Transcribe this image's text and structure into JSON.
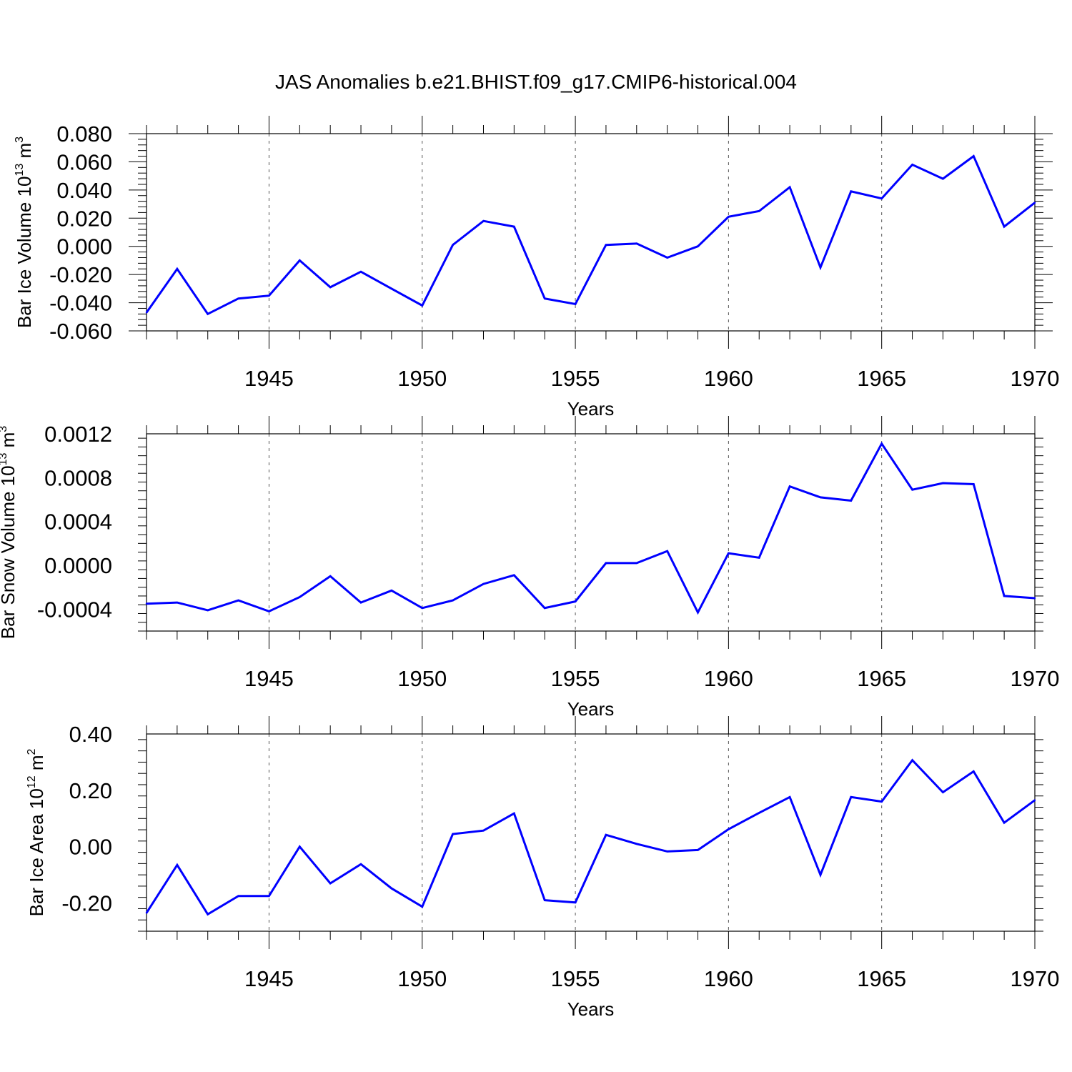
{
  "title": "JAS Anomalies b.e21.BHIST.f09_g17.CMIP6-historical.004",
  "colors": {
    "line": "#0000ff",
    "axis": "#000000",
    "grid": "#555555"
  },
  "chart_data": [
    {
      "type": "line",
      "title": "",
      "xlabel": "Years",
      "ylabel": {
        "base": "Bar Ice Volume 10",
        "exp": "13",
        "unit": " m",
        "unit_exp": "3"
      },
      "xlim": [
        1941,
        1970
      ],
      "ylim": [
        -0.06,
        0.08
      ],
      "x_ticks": [
        1945,
        1950,
        1955,
        1960,
        1965,
        1970
      ],
      "y_ticks": [
        -0.06,
        -0.04,
        -0.02,
        0.0,
        0.02,
        0.04,
        0.06,
        0.08
      ],
      "y_tick_labels": [
        "-0.060",
        "-0.040",
        "-0.020",
        "0.000",
        "0.020",
        "0.040",
        "0.060",
        "0.080"
      ],
      "grid": "dashed vertical at 1945, 1950, 1955, 1960, 1965",
      "x": [
        1941,
        1942,
        1943,
        1944,
        1945,
        1946,
        1947,
        1948,
        1949,
        1950,
        1951,
        1952,
        1953,
        1954,
        1955,
        1956,
        1957,
        1958,
        1959,
        1960,
        1961,
        1962,
        1963,
        1964,
        1965,
        1966,
        1967,
        1968,
        1969,
        1970
      ],
      "series": [
        {
          "values": [
            -0.047,
            -0.016,
            -0.048,
            -0.037,
            -0.035,
            -0.01,
            -0.029,
            -0.018,
            -0.03,
            -0.042,
            0.001,
            0.018,
            0.014,
            -0.037,
            -0.041,
            0.001,
            0.002,
            -0.008,
            0.0,
            0.021,
            0.025,
            0.042,
            -0.015,
            0.039,
            0.034,
            0.058,
            0.048,
            0.064,
            0.014,
            0.031
          ]
        }
      ]
    },
    {
      "type": "line",
      "title": "",
      "xlabel": "Years",
      "ylabel": {
        "base": "Bar Snow Volume 10",
        "exp": "13",
        "unit": " m",
        "unit_exp": "3"
      },
      "xlim": [
        1941,
        1970
      ],
      "ylim": [
        -0.0006,
        0.0012
      ],
      "x_ticks": [
        1945,
        1950,
        1955,
        1960,
        1965,
        1970
      ],
      "y_ticks": [
        -0.0004,
        0.0,
        0.0004,
        0.0008,
        0.0012
      ],
      "y_tick_labels": [
        "-0.0004",
        "0.0000",
        "0.0004",
        "0.0008",
        "0.0012"
      ],
      "grid": "dashed vertical at 1945, 1950, 1955, 1960, 1965",
      "x": [
        1941,
        1942,
        1943,
        1944,
        1945,
        1946,
        1947,
        1948,
        1949,
        1950,
        1951,
        1952,
        1953,
        1954,
        1955,
        1956,
        1957,
        1958,
        1959,
        1960,
        1961,
        1962,
        1963,
        1964,
        1965,
        1966,
        1967,
        1968,
        1969,
        1970
      ],
      "series": [
        {
          "values": [
            -0.00035,
            -0.00034,
            -0.00041,
            -0.00032,
            -0.00042,
            -0.00029,
            -0.0001,
            -0.00034,
            -0.00023,
            -0.00039,
            -0.00032,
            -0.00017,
            -9e-05,
            -0.00039,
            -0.00033,
            2e-05,
            2e-05,
            0.00013,
            -0.00043,
            0.00011,
            7e-05,
            0.00072,
            0.00062,
            0.00059,
            0.00111,
            0.00069,
            0.00075,
            0.00074,
            -0.00028,
            -0.0003
          ]
        }
      ]
    },
    {
      "type": "line",
      "title": "",
      "xlabel": "Years",
      "ylabel": {
        "base": "Bar Ice Area 10",
        "exp": "12",
        "unit": " m",
        "unit_exp": "2"
      },
      "xlim": [
        1941,
        1970
      ],
      "ylim": [
        -0.3,
        0.4
      ],
      "x_ticks": [
        1945,
        1950,
        1955,
        1960,
        1965,
        1970
      ],
      "y_ticks": [
        -0.2,
        0.0,
        0.2,
        0.4
      ],
      "y_tick_labels": [
        "-0.20",
        "0.00",
        "0.20",
        "0.40"
      ],
      "grid": "dashed vertical at 1945, 1950, 1955, 1960, 1965",
      "x": [
        1941,
        1942,
        1943,
        1944,
        1945,
        1946,
        1947,
        1948,
        1949,
        1950,
        1951,
        1952,
        1953,
        1954,
        1955,
        1956,
        1957,
        1958,
        1959,
        1960,
        1961,
        1962,
        1963,
        1964,
        1965,
        1966,
        1967,
        1968,
        1969,
        1970
      ],
      "series": [
        {
          "values": [
            -0.235,
            -0.065,
            -0.24,
            -0.175,
            -0.175,
            0.0,
            -0.13,
            -0.062,
            -0.148,
            -0.213,
            0.045,
            0.057,
            0.118,
            -0.19,
            -0.198,
            0.042,
            0.01,
            -0.017,
            -0.012,
            0.062,
            0.12,
            0.176,
            -0.1,
            0.176,
            0.16,
            0.307,
            0.193,
            0.267,
            0.085,
            0.165
          ]
        }
      ]
    }
  ]
}
